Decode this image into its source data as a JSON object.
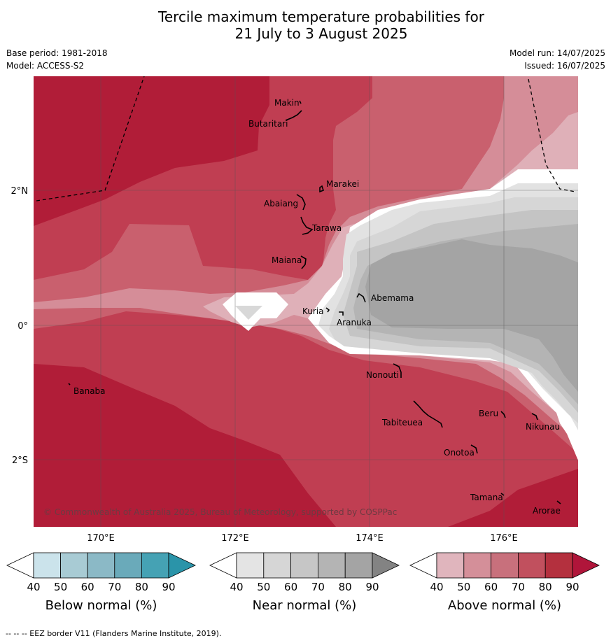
{
  "title_line1": "Tercile maximum temperature probabilities for",
  "title_line2": "21 July to 3 August 2025",
  "base_period": "Base period: 1981-2018",
  "model": "Model: ACCESS-S2",
  "model_run": "Model run: 14/07/2025",
  "issued": "Issued: 16/07/2025",
  "lat_labels": [
    "2°N",
    "0°",
    "2°S"
  ],
  "lon_labels": [
    "170°E",
    "172°E",
    "174°E",
    "176°E"
  ],
  "places": {
    "makin": "Makin",
    "butaritari": "Butaritari",
    "marakei": "Marakei",
    "abaiang": "Abaiang",
    "tarawa": "Tarawa",
    "maiana": "Maiana",
    "abemama": "Abemama",
    "kuria": "Kuria",
    "aranuka": "Aranuka",
    "banaba": "Banaba",
    "nonouti": "Nonouti",
    "beru": "Beru",
    "nikunau": "Nikunau",
    "tabiteuea": "Tabiteuea",
    "onotoa": "Onotoa",
    "tamana": "Tamana",
    "arorae": "Arorae"
  },
  "copyright": "© Commonwealth of Australia 2025, Bureau of Meteorology, supported by COSPPac",
  "colorbars": {
    "ticks": [
      "40",
      "50",
      "60",
      "70",
      "80",
      "90"
    ],
    "below": {
      "title": "Below normal (%)",
      "colors": [
        "#ffffff",
        "#cbe3eb",
        "#a8cbd4",
        "#8bb9c6",
        "#6aaaba",
        "#45a2b4",
        "#2a94a9"
      ]
    },
    "near": {
      "title": "Near normal (%)",
      "colors": [
        "#ffffff",
        "#e4e4e4",
        "#d6d6d6",
        "#c6c6c6",
        "#b4b4b4",
        "#a4a4a4",
        "#838383"
      ]
    },
    "above": {
      "title": "Above normal (%)",
      "colors": [
        "#ffffff",
        "#e0b5bd",
        "#d48f99",
        "#c8707c",
        "#c1505e",
        "#b4303e",
        "#b0153a"
      ]
    }
  },
  "footer": "--  --  -- EEZ border V11 (Flanders Marine Institute, 2019)."
}
